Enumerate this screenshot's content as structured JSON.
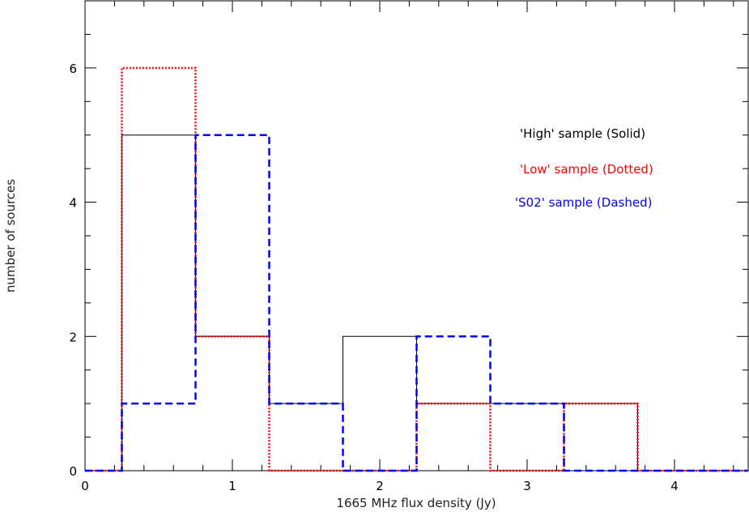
{
  "chart_data": {
    "type": "histogram",
    "xlabel": "1665 MHz flux density (Jy)",
    "ylabel": "number of sources",
    "xlim": [
      0,
      4.5
    ],
    "ylim": [
      0,
      7
    ],
    "xticks": [
      0,
      1,
      2,
      3,
      4
    ],
    "yticks": [
      0,
      2,
      4,
      6
    ],
    "xtick_labels": [
      "0",
      "1",
      "2",
      "3",
      "4"
    ],
    "ytick_labels": [
      "0",
      "2",
      "4",
      "6"
    ],
    "bin_edges": [
      0,
      0.25,
      0.75,
      1.25,
      1.75,
      2.25,
      2.75,
      3.25,
      3.75,
      4.5
    ],
    "series": [
      {
        "name": "'High' sample (Solid)",
        "line_style": "solid",
        "color": "#000000",
        "values": [
          0,
          5,
          2,
          1,
          2,
          1,
          1,
          1,
          0
        ]
      },
      {
        "name": "'Low' sample (Dotted)",
        "line_style": "dotted",
        "color": "#ff0000",
        "values": [
          0,
          6,
          2,
          0,
          0,
          1,
          0,
          1,
          0
        ]
      },
      {
        "name": "'S02' sample (Dashed)",
        "line_style": "dashed",
        "color": "#0000ff",
        "values": [
          0,
          1,
          5,
          1,
          0,
          2,
          1,
          0,
          0
        ]
      }
    ],
    "legend_position": "upper-right",
    "grid": false
  }
}
